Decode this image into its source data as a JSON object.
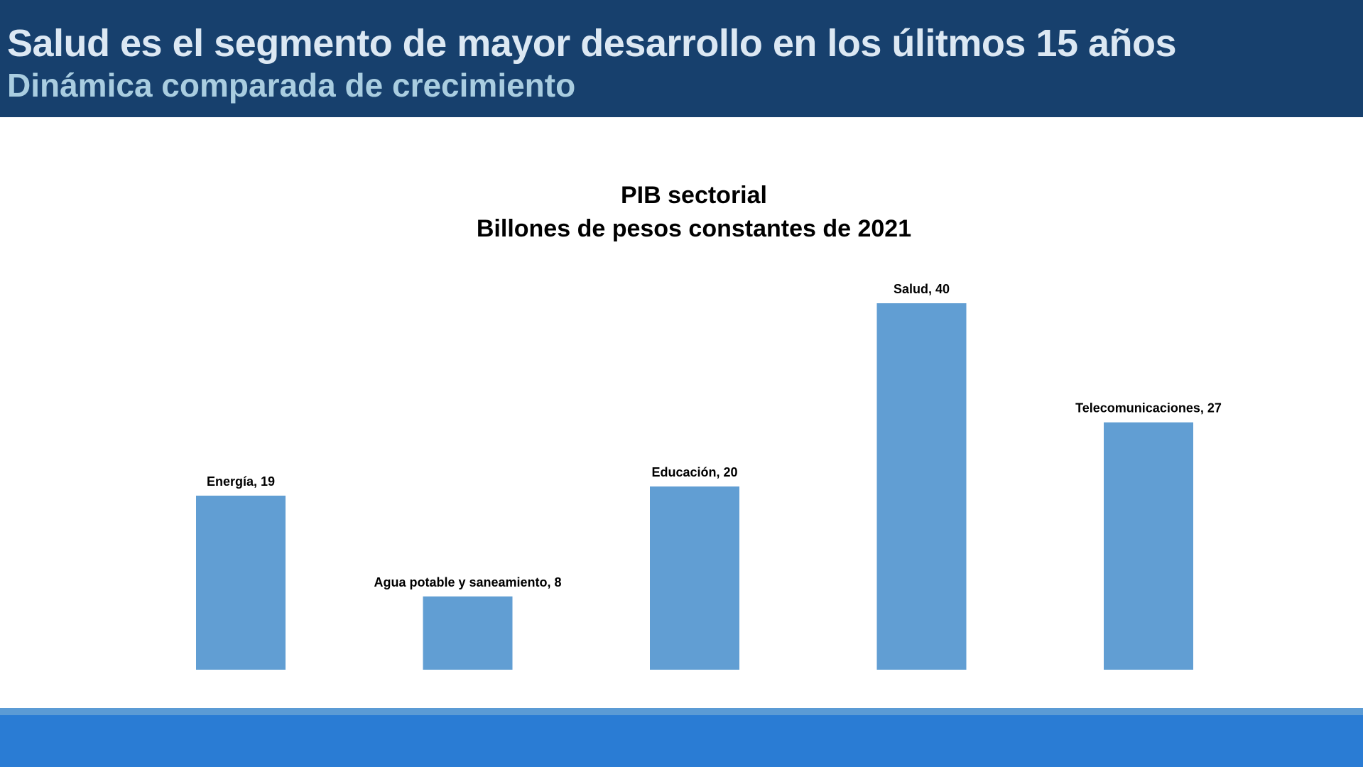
{
  "header": {
    "title": "Salud es el segmento de mayor desarrollo en los úlitmos 15 años",
    "subtitle": "Dinámica comparada de crecimiento"
  },
  "colors": {
    "header_bg": "#17406d",
    "bar": "#619ed3",
    "footer": "#2a7cd4",
    "footer_strip": "#5b9bd5"
  },
  "chart_data": {
    "type": "bar",
    "title": "PIB sectorial",
    "subtitle": "Billones de pesos constantes de 2021",
    "categories": [
      "Energía",
      "Agua potable y saneamiento",
      "Educación",
      "Salud",
      "Telecomunicaciones"
    ],
    "values": [
      19,
      8,
      20,
      40,
      27
    ],
    "data_labels": [
      "Energía, 19",
      "Agua potable y saneamiento, 8",
      "Educación, 20",
      "Salud, 40",
      "Telecomunicaciones, 27"
    ],
    "ylim": [
      0,
      40
    ],
    "grid": false,
    "axes_visible": false,
    "legend": "none"
  }
}
